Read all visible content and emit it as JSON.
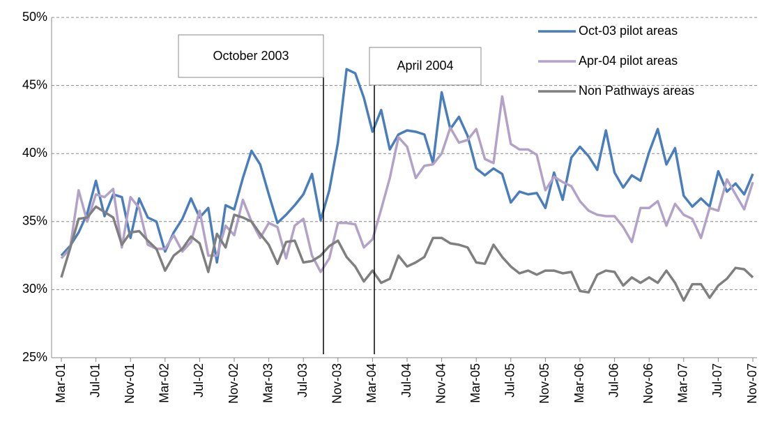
{
  "chart_data": {
    "type": "line",
    "categories": [
      "Mar-01",
      null,
      null,
      null,
      "Jul-01",
      null,
      null,
      null,
      "Nov-01",
      null,
      null,
      null,
      "Mar-02",
      null,
      null,
      null,
      "Jul-02",
      null,
      null,
      null,
      "Nov-02",
      null,
      null,
      null,
      "Mar-03",
      null,
      null,
      null,
      "Jul-03",
      null,
      null,
      null,
      "Nov-03",
      null,
      null,
      null,
      "Mar-04",
      null,
      null,
      null,
      "Jul-04",
      null,
      null,
      null,
      "Nov-04",
      null,
      null,
      null,
      "Mar-05",
      null,
      null,
      null,
      "Jul-05",
      null,
      null,
      null,
      "Nov-05",
      null,
      null,
      null,
      "Mar-06",
      null,
      null,
      null,
      "Jul-06",
      null,
      null,
      null,
      "Nov-06",
      null,
      null,
      null,
      "Mar-07",
      null,
      null,
      null,
      "Jul-07",
      null,
      null,
      null,
      "Nov-07"
    ],
    "series": [
      {
        "name": "Oct-03 pilot areas",
        "color": "#4a7ebb",
        "values": [
          32.5,
          33.2,
          34.2,
          35.6,
          38.0,
          35.4,
          37.0,
          36.8,
          33.8,
          36.7,
          35.3,
          35.0,
          32.8,
          34.2,
          35.2,
          36.7,
          35.3,
          36.0,
          32.0,
          36.2,
          35.9,
          38.2,
          40.2,
          39.2,
          37.0,
          34.9,
          35.5,
          36.2,
          37.0,
          38.5,
          35.1,
          37.3,
          40.8,
          46.2,
          45.9,
          44.1,
          41.6,
          43.2,
          40.3,
          41.4,
          41.7,
          41.6,
          41.4,
          39.3,
          44.5,
          41.8,
          42.7,
          41.3,
          38.9,
          38.4,
          38.9,
          38.5,
          36.4,
          37.2,
          37.0,
          37.1,
          36.0,
          38.6,
          36.6,
          39.7,
          40.5,
          39.8,
          38.8,
          41.7,
          38.6,
          37.5,
          38.4,
          38.0,
          40.1,
          41.8,
          39.2,
          40.4,
          36.9,
          36.1,
          36.7,
          36.1,
          38.7,
          37.2,
          37.8,
          37.0,
          38.5
        ]
      },
      {
        "name": "Apr-04 pilot areas",
        "color": "#b3a2c7",
        "values": [
          32.3,
          33.0,
          37.3,
          35.0,
          37.0,
          36.8,
          37.4,
          33.1,
          36.8,
          36.0,
          33.3,
          33.0,
          33.0,
          34.0,
          32.8,
          33.5,
          35.8,
          32.5,
          32.5,
          34.7,
          34.0,
          36.6,
          35.0,
          33.8,
          34.9,
          34.6,
          32.3,
          34.7,
          35.2,
          32.5,
          31.3,
          32.3,
          34.9,
          34.9,
          34.8,
          33.1,
          33.7,
          35.9,
          38.2,
          41.2,
          40.5,
          38.2,
          39.1,
          39.2,
          40.0,
          41.9,
          40.8,
          41.0,
          41.8,
          39.6,
          39.3,
          44.2,
          40.7,
          40.3,
          40.3,
          39.9,
          37.3,
          38.3,
          37.9,
          37.6,
          36.5,
          35.8,
          35.5,
          35.4,
          35.4,
          34.6,
          33.5,
          36.0,
          36.0,
          36.5,
          34.7,
          36.3,
          35.5,
          35.2,
          33.8,
          36.0,
          35.8,
          38.1,
          37.0,
          35.9,
          37.9
        ]
      },
      {
        "name": "Non Pathways areas",
        "color": "#7f7f7f",
        "values": [
          30.9,
          33.0,
          35.2,
          35.3,
          36.1,
          35.7,
          35.3,
          33.3,
          34.2,
          34.3,
          33.6,
          33.0,
          31.4,
          32.5,
          33.0,
          33.9,
          33.4,
          31.3,
          34.1,
          33.1,
          35.5,
          35.3,
          35.0,
          34.1,
          33.3,
          31.9,
          33.5,
          33.6,
          32.0,
          32.1,
          32.5,
          33.2,
          33.6,
          32.4,
          31.7,
          30.6,
          31.4,
          30.5,
          30.8,
          32.5,
          31.7,
          32.0,
          32.4,
          33.8,
          33.8,
          33.4,
          33.3,
          33.1,
          32.0,
          31.9,
          33.3,
          32.4,
          31.7,
          31.2,
          31.4,
          31.1,
          31.4,
          31.4,
          31.2,
          31.3,
          29.9,
          29.8,
          31.1,
          31.4,
          31.3,
          30.3,
          30.9,
          30.5,
          30.9,
          30.5,
          31.4,
          30.5,
          29.2,
          30.4,
          30.4,
          29.4,
          30.3,
          30.8,
          31.6,
          31.5,
          30.9
        ]
      }
    ],
    "ylim": [
      25,
      50
    ],
    "yticks": [
      {
        "value": 25,
        "label": "25%"
      },
      {
        "value": 30,
        "label": "30%"
      },
      {
        "value": 35,
        "label": "35%"
      },
      {
        "value": 40,
        "label": "40%"
      },
      {
        "value": 45,
        "label": "45%"
      },
      {
        "value": 50,
        "label": "50%"
      }
    ],
    "grid": true,
    "legend": "top-right",
    "annotations": [
      "October 2003",
      "April 2004"
    ]
  }
}
